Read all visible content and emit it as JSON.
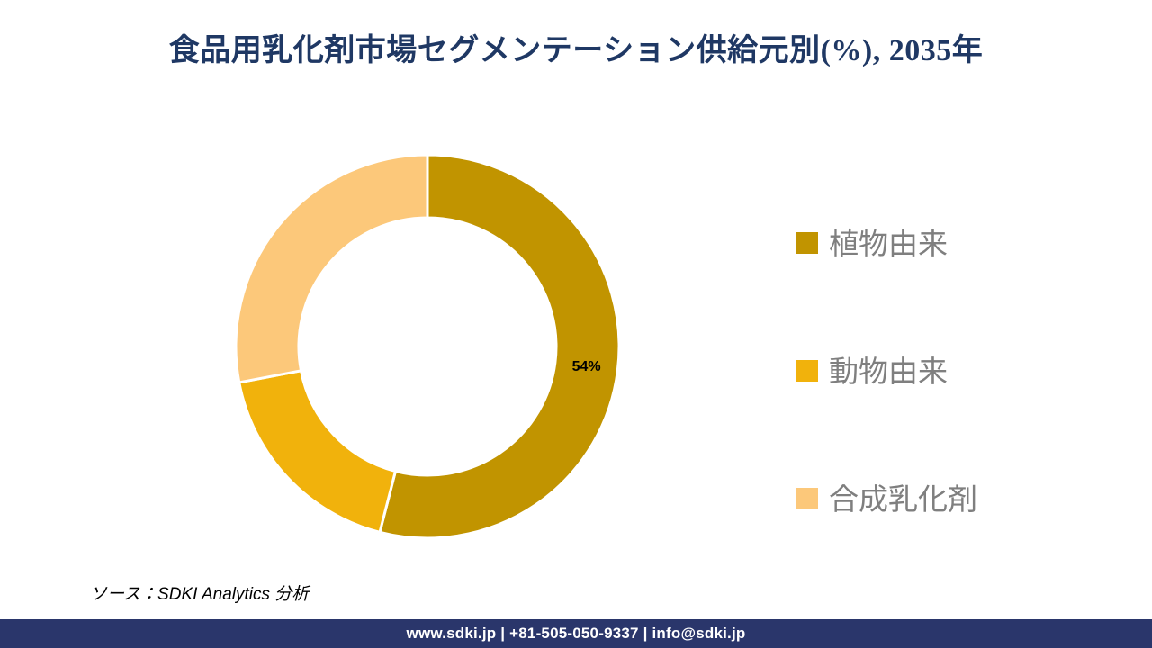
{
  "title": "食品用乳化剤市場セグメンテーション供給元別(%), 2035年",
  "title_color": "#1F3864",
  "chart_data": {
    "type": "pie",
    "subtype": "donut",
    "title": "食品用乳化剤市場セグメンテーション供給元別(%), 2035年",
    "unit": "%",
    "categories": [
      "植物由来",
      "動物由来",
      "合成乳化剤"
    ],
    "values": [
      54,
      18,
      28
    ],
    "slices": [
      {
        "label": "植物由来",
        "value": 54,
        "color": "#C19400",
        "data_label": "54%"
      },
      {
        "label": "動物由来",
        "value": 18,
        "color": "#F1B20C",
        "data_label": ""
      },
      {
        "label": "合成乳化剤",
        "value": 28,
        "color": "#FCC87A",
        "data_label": ""
      }
    ],
    "start_angle_deg": 0,
    "direction": "clockwise",
    "inner_radius_ratio": 0.67,
    "slice_separator_color": "#FFFFFF",
    "legend_position": "right",
    "legend_text_color": "#7F7F7F",
    "data_label_color": "#000000"
  },
  "source": {
    "text": "ソース：SDKI Analytics 分析"
  },
  "footer": {
    "text": "www.sdki.jp | +81-505-050-9337 | info@sdki.jp",
    "bg_color": "#2A366B",
    "text_color": "#FFFFFF"
  }
}
